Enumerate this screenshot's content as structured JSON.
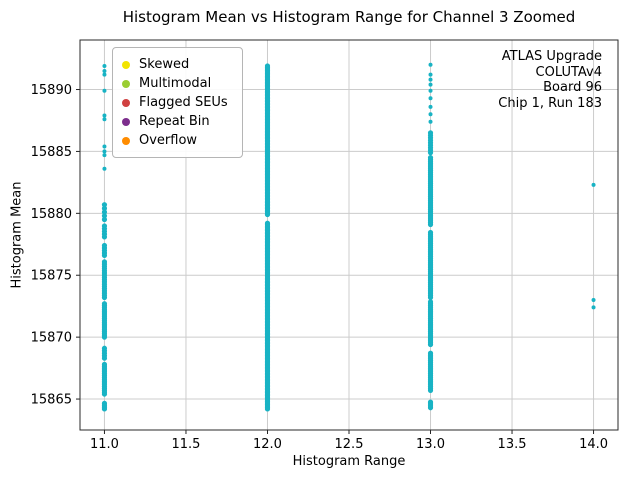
{
  "figure": {
    "title": "Histogram Mean vs Histogram Range for Channel 3 Zoomed",
    "xlabel": "Histogram Range",
    "ylabel": "Histogram Mean",
    "annotation_lines": [
      "ATLAS Upgrade",
      "COLUTAv4",
      "Board 96",
      "Chip 1, Run 183"
    ],
    "legend_items": [
      {
        "label": "Skewed",
        "color": "#f2e400"
      },
      {
        "label": "Multimodal",
        "color": "#9acd32"
      },
      {
        "label": "Flagged SEUs",
        "color": "#d04040"
      },
      {
        "label": "Repeat Bin",
        "color": "#7d2e8d"
      },
      {
        "label": "Overflow",
        "color": "#ff8c00"
      }
    ]
  },
  "chart_data": {
    "type": "scatter",
    "title": "Histogram Mean vs Histogram Range for Channel 3 Zoomed",
    "xlabel": "Histogram Range",
    "ylabel": "Histogram Mean",
    "legend": [
      "Skewed",
      "Multimodal",
      "Flagged SEUs",
      "Repeat Bin",
      "Overflow"
    ],
    "grid": true,
    "xlim": [
      10.85,
      14.15
    ],
    "ylim": [
      15862.5,
      15894.0
    ],
    "xticks": {
      "values": [
        11.0,
        11.5,
        12.0,
        12.5,
        13.0,
        13.5,
        14.0
      ],
      "labels": [
        "11.0",
        "11.5",
        "12.0",
        "12.5",
        "13.0",
        "13.5",
        "14.0"
      ]
    },
    "yticks": {
      "values": [
        15865,
        15870,
        15875,
        15880,
        15885,
        15890
      ],
      "labels": [
        "15865",
        "15870",
        "15875",
        "15880",
        "15885",
        "15890"
      ]
    },
    "marker": {
      "color": "#18b3c4",
      "dense_radius": 2.6,
      "point_radius": 2.0
    },
    "columns": [
      {
        "x": 11.0,
        "dense_ranges": [
          [
            15864.2,
            15864.7,
            0.15
          ],
          [
            15865.4,
            15867.9,
            0.15
          ],
          [
            15868.3,
            15869.1,
            0.2
          ],
          [
            15870.0,
            15872.8,
            0.15
          ],
          [
            15873.2,
            15876.2,
            0.18
          ],
          [
            15876.6,
            15877.4,
            0.2
          ],
          [
            15878.1,
            15879.0,
            0.22
          ],
          [
            15879.5,
            15880.7,
            0.3
          ]
        ],
        "points": [
          15883.6,
          15884.7,
          15885.0,
          15885.4,
          15887.6,
          15887.9,
          15889.9,
          15891.2,
          15891.5,
          15891.9
        ]
      },
      {
        "x": 12.0,
        "dense_ranges": [
          [
            15864.2,
            15879.3,
            0.12
          ],
          [
            15879.9,
            15892.0,
            0.12
          ]
        ],
        "points": []
      },
      {
        "x": 13.0,
        "dense_ranges": [
          [
            15864.3,
            15864.8,
            0.15
          ],
          [
            15865.7,
            15868.7,
            0.15
          ],
          [
            15869.4,
            15872.9,
            0.15
          ],
          [
            15873.2,
            15878.5,
            0.15
          ],
          [
            15879.1,
            15884.6,
            0.15
          ],
          [
            15884.9,
            15886.6,
            0.2
          ]
        ],
        "points": [
          15887.4,
          15888.0,
          15888.6,
          15889.3,
          15889.9,
          15890.4,
          15890.8,
          15891.2,
          15892.0
        ]
      },
      {
        "x": 14.0,
        "dense_ranges": [],
        "points": [
          15882.3,
          15873.0,
          15872.4
        ]
      }
    ]
  }
}
